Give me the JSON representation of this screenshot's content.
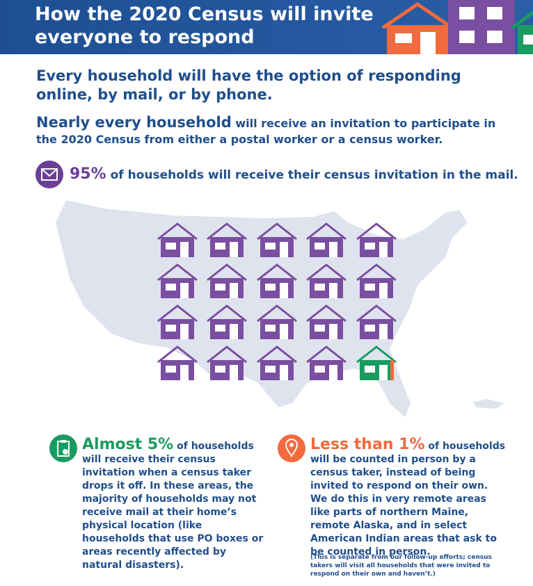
{
  "header": {
    "title_lines": [
      "How the 2020 Census will invite",
      "everyone to respond"
    ]
  },
  "headline": "Every household will have the option of responding online, by mail, or by phone.",
  "intro": {
    "bold": "Nearly every household",
    "text": "will receive an invitation to participate in the 2020 Census from either a postal worker or a census worker."
  },
  "mail": {
    "stat": "95%",
    "text": "of households will receive their census invitation in the mail."
  },
  "drop_off": {
    "stat": "Almost 5%",
    "text": "of households will receive their census invitation when a census taker drops it off. In these areas, the majority of households may not receive mail at their home’s physical location (like households that use PO boxes or areas recently affected by natural disasters)."
  },
  "in_person": {
    "stat": "Less than 1%",
    "text": "of households will be counted in person by a census taker, instead of being invited to respond on their own. We do this in very remote areas like parts of northern Maine, remote Alaska, and in select American Indian areas that ask to be counted in person.",
    "note": "(This is separate from our follow-up efforts; census takers will visit all households that were invited to respond on their own and haven’t.)"
  }
}
